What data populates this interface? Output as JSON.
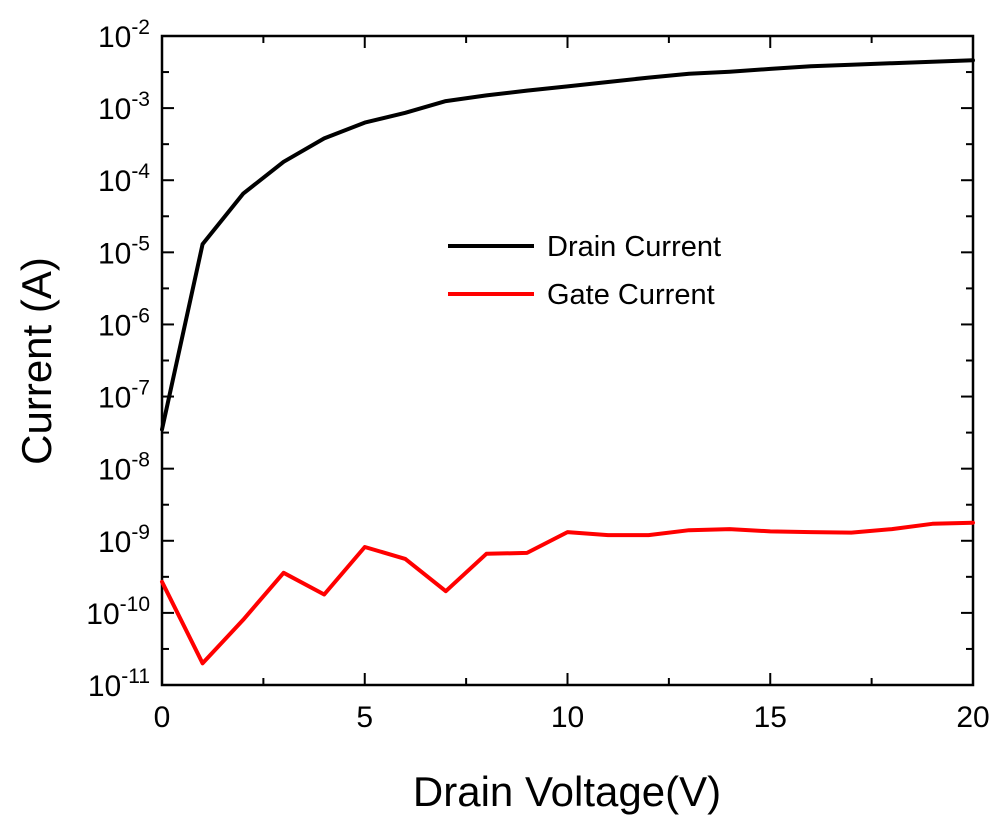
{
  "chart_data": {
    "type": "line",
    "title": "",
    "xlabel": "Drain Voltage(V)",
    "ylabel": "Current (A)",
    "xlim": [
      0,
      20
    ],
    "ylim": [
      1e-11,
      0.01
    ],
    "yscale": "log",
    "grid": false,
    "legend_position": "center-right",
    "x_ticks": [
      {
        "value": 0,
        "label": "0"
      },
      {
        "value": 5,
        "label": "5"
      },
      {
        "value": 10,
        "label": "10"
      },
      {
        "value": 15,
        "label": "15"
      },
      {
        "value": 20,
        "label": "20"
      }
    ],
    "y_ticks": [
      {
        "exp": -11,
        "base": "10",
        "exponent": "-11"
      },
      {
        "exp": -10,
        "base": "10",
        "exponent": "-10"
      },
      {
        "exp": -9,
        "base": "10",
        "exponent": "-9"
      },
      {
        "exp": -8,
        "base": "10",
        "exponent": "-8"
      },
      {
        "exp": -7,
        "base": "10",
        "exponent": "-7"
      },
      {
        "exp": -6,
        "base": "10",
        "exponent": "-6"
      },
      {
        "exp": -5,
        "base": "10",
        "exponent": "-5"
      },
      {
        "exp": -4,
        "base": "10",
        "exponent": "-4"
      },
      {
        "exp": -3,
        "base": "10",
        "exponent": "-3"
      },
      {
        "exp": -2,
        "base": "10",
        "exponent": "-2"
      }
    ],
    "series": [
      {
        "name": "Drain Current",
        "color": "#000000",
        "x": [
          0,
          1,
          2,
          3,
          4,
          5,
          6,
          7,
          8,
          9,
          10,
          11,
          12,
          13,
          14,
          15,
          16,
          17,
          18,
          19,
          20
        ],
        "y": [
          3.5e-08,
          1.3e-05,
          6.5e-05,
          0.00018,
          0.00038,
          0.00063,
          0.00086,
          0.00125,
          0.0015,
          0.00175,
          0.002,
          0.0023,
          0.00265,
          0.003,
          0.0032,
          0.0035,
          0.0038,
          0.004,
          0.0042,
          0.0044,
          0.0046
        ]
      },
      {
        "name": "Gate Current",
        "color": "#ff0000",
        "x": [
          0,
          1,
          2,
          3,
          4,
          5,
          6,
          7,
          8,
          9,
          10,
          11,
          12,
          13,
          14,
          15,
          16,
          17,
          18,
          19,
          20
        ],
        "y": [
          2.7e-10,
          2e-11,
          8e-11,
          3.6e-10,
          1.8e-10,
          8.2e-10,
          5.6e-10,
          2e-10,
          6.6e-10,
          6.8e-10,
          1.32e-09,
          1.2e-09,
          1.2e-09,
          1.4e-09,
          1.45e-09,
          1.35e-09,
          1.32e-09,
          1.3e-09,
          1.45e-09,
          1.72e-09,
          1.78e-09
        ]
      }
    ]
  }
}
